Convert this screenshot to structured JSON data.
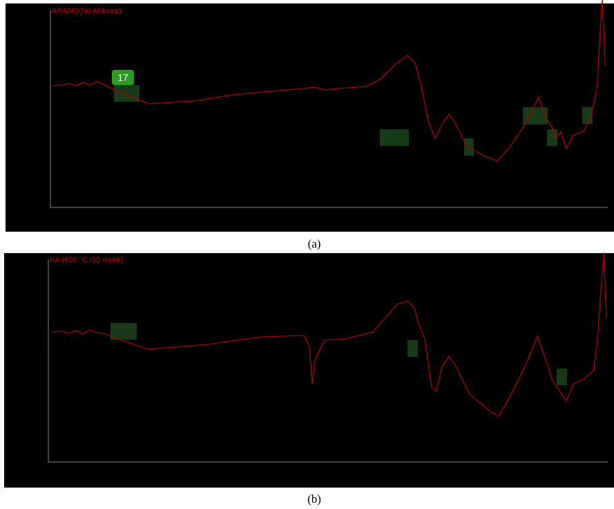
{
  "panels": [
    {
      "title": "ARANG(No Aktivasi)",
      "caption": "(a)",
      "badge": "17"
    },
    {
      "title": "KA (600 °C /30 menit)",
      "caption": "(b)"
    }
  ]
}
